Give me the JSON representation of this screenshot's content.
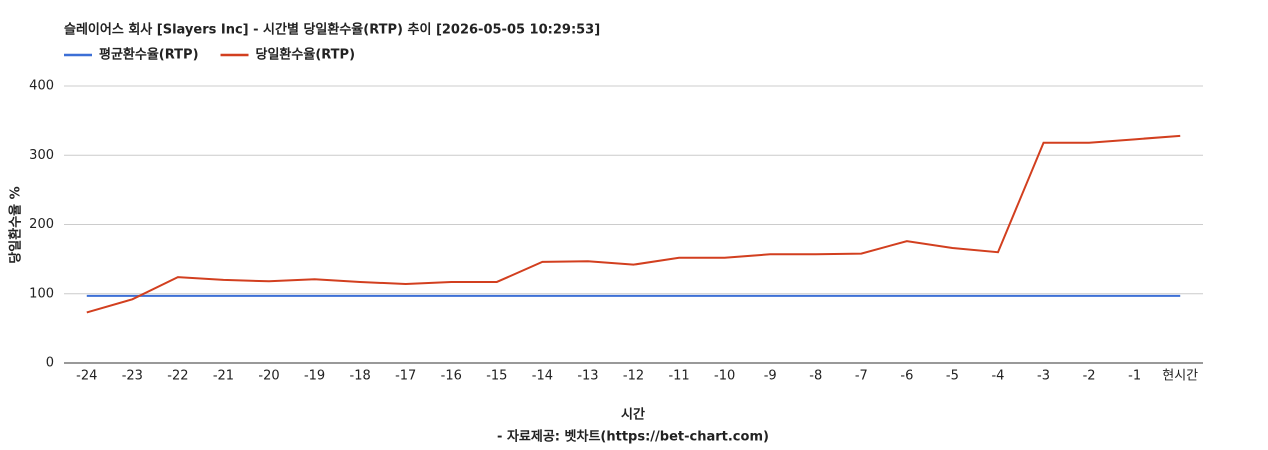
{
  "chart_data": {
    "type": "line",
    "title": "슬레이어스 회사 [Slayers Inc] - 시간별 당일환수율(RTP) 추이 [2026-05-05 10:29:53]",
    "x_label": "시간",
    "y_label": "당일환수율 %",
    "source": "- 자료제공: 벳차트(https://bet-chart.com)",
    "categories": [
      "-24",
      "-23",
      "-22",
      "-21",
      "-20",
      "-19",
      "-18",
      "-17",
      "-16",
      "-15",
      "-14",
      "-13",
      "-12",
      "-11",
      "-10",
      "-9",
      "-8",
      "-7",
      "-6",
      "-5",
      "-4",
      "-3",
      "-2",
      "-1",
      "현시간"
    ],
    "series": [
      {
        "name": "평균환수율(RTP)",
        "color": "#3c6fd6",
        "values": [
          97,
          97,
          97,
          97,
          97,
          97,
          97,
          97,
          97,
          97,
          97,
          97,
          97,
          97,
          97,
          97,
          97,
          97,
          97,
          97,
          97,
          97,
          97,
          97,
          97
        ]
      },
      {
        "name": "당일환수율(RTP)",
        "color": "#d23f1f",
        "values": [
          73,
          92,
          124,
          120,
          118,
          121,
          117,
          114,
          117,
          117,
          146,
          147,
          142,
          152,
          152,
          157,
          157,
          158,
          176,
          166,
          160,
          318,
          318,
          323,
          328
        ]
      }
    ],
    "ylim": [
      0,
      400
    ],
    "yticks": [
      0,
      100,
      200,
      300,
      400
    ],
    "grid": true
  }
}
